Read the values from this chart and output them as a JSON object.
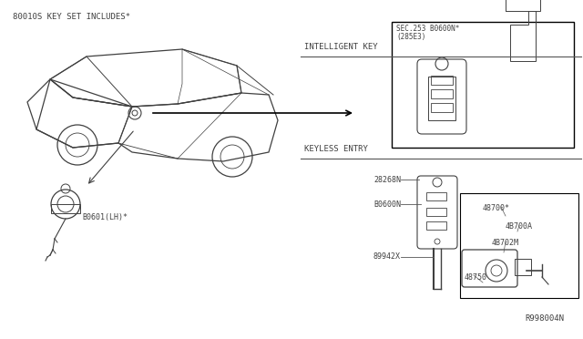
{
  "bg_color": "#ffffff",
  "title_label": "80010S KEY SET INCLUDES*",
  "intelligent_key_label": "INTELLIGENT KEY",
  "keyless_entry_label": "KEYLESS ENTRY",
  "part_labels": {
    "B0601LH": "B0601(LH)*",
    "B0600N": "B0600N",
    "28268N": "28268N",
    "89942X": "89942X",
    "48700star": "48700*",
    "48700A": "4B700A",
    "48702M": "4B702M",
    "48750": "48750",
    "R998004N": "R998004N",
    "SEC253": "SEC.253 B0600N*",
    "285E3": "(285E3)"
  },
  "diagram_color": "#404040",
  "line_color": "#555555",
  "box_color": "#000000",
  "font_size_label": 6.5,
  "font_size_parts": 6.0
}
